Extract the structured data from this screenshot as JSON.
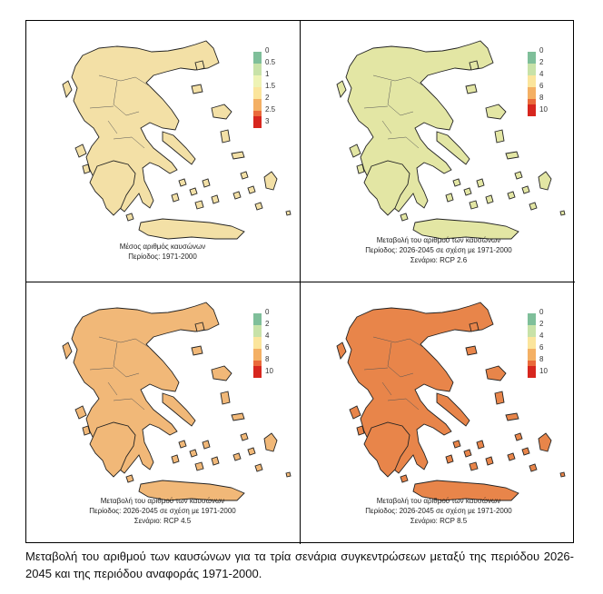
{
  "panels": [
    {
      "caption": [
        "Μέσος αριθμός καυσώνων",
        "Περίοδος: 1971-2000"
      ],
      "legend": {
        "labels": [
          "0",
          "0.5",
          "1",
          "1.5",
          "2",
          "2.5",
          "3"
        ],
        "colors": [
          "#7fbf9a",
          "#c8e2a8",
          "#eef3b5",
          "#fbe59c",
          "#f4b064",
          "#ea6a3a",
          "#d7261e"
        ]
      },
      "map_fill": "#f3e0a6"
    },
    {
      "caption": [
        "Μεταβολή του αριθμού των καυσώνων",
        "Περίοδος: 2026-2045 σε σχέση με 1971-2000",
        "Σενάριο: RCP 2.6"
      ],
      "legend": {
        "labels": [
          "0",
          "2",
          "4",
          "6",
          "8",
          "10"
        ],
        "colors": [
          "#7fbf9a",
          "#c8e2a8",
          "#fbe59c",
          "#f4b064",
          "#ea6a3a",
          "#d7261e"
        ]
      },
      "map_fill": "#e3e6a4"
    },
    {
      "caption": [
        "Μεταβολή του αριθμού των καυσώνων",
        "Περίοδος: 2026-2045 σε σχέση με 1971-2000",
        "Σενάριο: RCP 4.5"
      ],
      "legend": {
        "labels": [
          "0",
          "2",
          "4",
          "6",
          "8",
          "10"
        ],
        "colors": [
          "#7fbf9a",
          "#c8e2a8",
          "#fbe59c",
          "#f4b064",
          "#ea6a3a",
          "#d7261e"
        ]
      },
      "map_fill": "#f1b878"
    },
    {
      "caption": [
        "Μεταβολή του αριθμού των καυσώνων",
        "Περίοδος: 2026-2045 σε σχέση με 1971-2000",
        "Σενάριο: RCP 8.5"
      ],
      "legend": {
        "labels": [
          "0",
          "2",
          "4",
          "6",
          "8",
          "10"
        ],
        "colors": [
          "#7fbf9a",
          "#c8e2a8",
          "#fbe59c",
          "#f4b064",
          "#ea6a3a",
          "#d7261e"
        ]
      },
      "map_fill": "#e8854a"
    }
  ],
  "figure_caption": "Μεταβολή του αριθμού των καυσώνων για τα τρία σενάρια συγκεντρώσεων μεταξύ της περιόδου 2026-2045 και της περιόδου αναφοράς 1971-2000."
}
